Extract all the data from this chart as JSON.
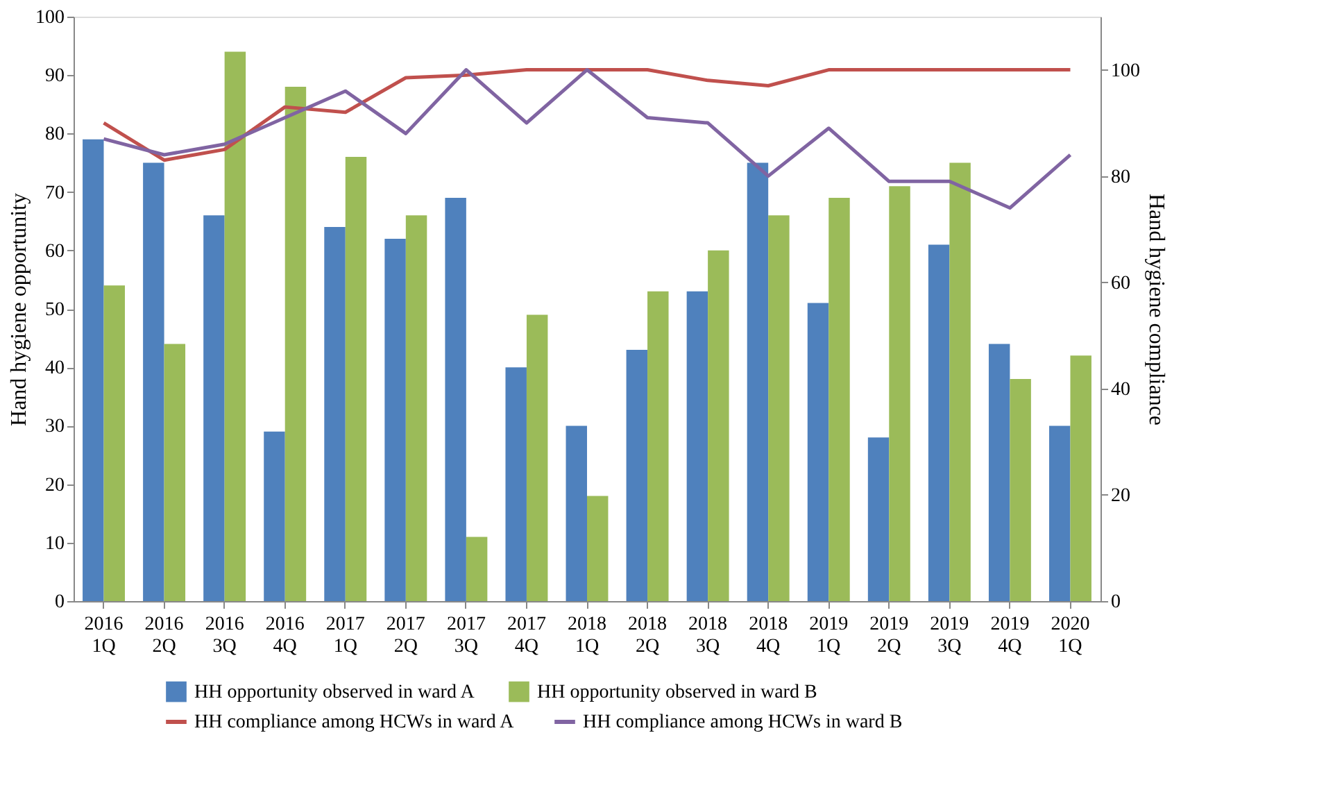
{
  "chart_data": {
    "type": "bar",
    "categories": [
      "2016 1Q",
      "2016 2Q",
      "2016 3Q",
      "2016 4Q",
      "2017 1Q",
      "2017 2Q",
      "2017 3Q",
      "2017 4Q",
      "2018 1Q",
      "2018 2Q",
      "2018 3Q",
      "2018 4Q",
      "2019 1Q",
      "2019 2Q",
      "2019 3Q",
      "2019 4Q",
      "2020 1Q"
    ],
    "ylabel": "Hand hygiene opportunity",
    "y2label": "Hand hygiene compliance",
    "ylim": [
      0,
      100
    ],
    "yticks": [
      0,
      10,
      20,
      30,
      40,
      50,
      60,
      70,
      80,
      90,
      100
    ],
    "y2lim": [
      0,
      110
    ],
    "y2ticks": [
      0,
      20,
      40,
      60,
      80,
      100
    ],
    "legend": "bottom",
    "series": [
      {
        "name": "HH opportunity observed in ward A",
        "color": "#4f81bd",
        "values": [
          79,
          75,
          66,
          29,
          64,
          62,
          69,
          40,
          30,
          43,
          53,
          75,
          51,
          28,
          61,
          44,
          30
        ]
      },
      {
        "name": "HH opportunity observed in ward B",
        "color": "#9bbb59",
        "values": [
          54,
          44,
          94,
          88,
          76,
          66,
          11,
          49,
          18,
          53,
          60,
          66,
          69,
          71,
          75,
          38,
          42
        ]
      },
      {
        "name": "HH compliance among HCWs in ward A",
        "type": "line",
        "axis": "y2",
        "color": "#c0504d",
        "values": [
          90,
          83,
          85,
          93,
          92,
          98.5,
          99,
          100,
          100,
          100,
          98,
          97,
          100,
          100,
          100,
          100,
          100
        ]
      },
      {
        "name": "HH compliance among HCWs in ward B",
        "type": "line",
        "axis": "y2",
        "color": "#8064a2",
        "values": [
          87,
          84,
          86,
          91,
          96,
          88,
          100,
          90,
          100,
          91,
          90,
          80,
          89,
          79,
          79,
          74,
          84
        ]
      }
    ]
  }
}
